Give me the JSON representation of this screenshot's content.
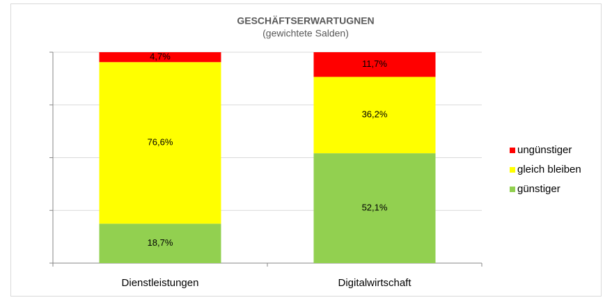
{
  "chart_data": {
    "type": "stacked_bar",
    "title": "GESCHÄFTSERWARTUGNEN",
    "subtitle": "(gewichtete Salden)",
    "categories": [
      "Dienstleistungen",
      "Digitalwirtschaft"
    ],
    "series": [
      {
        "name": "günstiger",
        "color": "#92d050",
        "values": [
          18.7,
          52.1
        ],
        "value_labels": [
          "18,7%",
          "52,1%"
        ]
      },
      {
        "name": "gleich bleiben",
        "color": "#ffff00",
        "values": [
          76.6,
          36.2
        ],
        "value_labels": [
          "76,6%",
          "36,2%"
        ]
      },
      {
        "name": "ungünstiger",
        "color": "#ff0000",
        "values": [
          4.7,
          11.7
        ],
        "value_labels": [
          "4,7%",
          "11,7%"
        ]
      }
    ],
    "ylim": [
      0,
      100
    ],
    "yticks": [
      0,
      25,
      50,
      75,
      100
    ],
    "grid": true,
    "legend": "right"
  }
}
